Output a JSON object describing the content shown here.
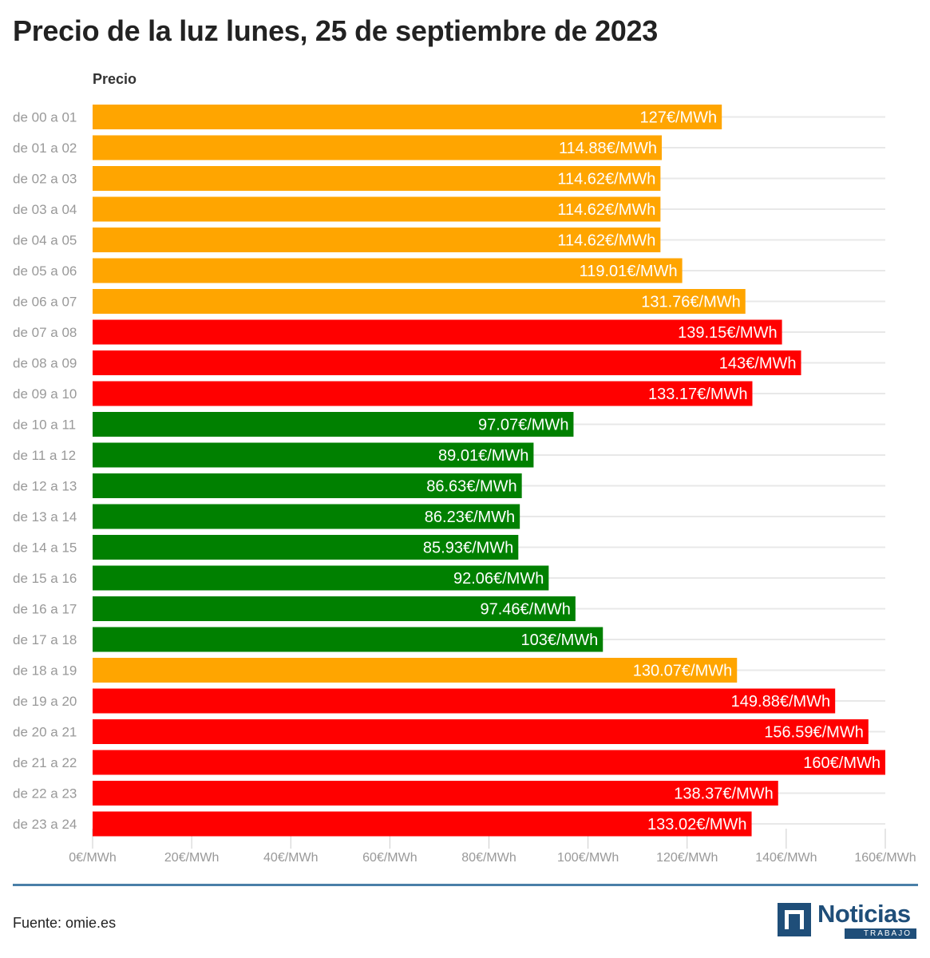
{
  "title": "Precio de la luz lunes, 25 de septiembre de 2023",
  "source": "Fuente: omie.es",
  "logo": {
    "name": "Noticias",
    "sub": "TRABAJO"
  },
  "colors": {
    "medium": "#ffa500",
    "high": "#ff0000",
    "low": "#008000",
    "grid": "#e8e8e8",
    "text": "#999999"
  },
  "chart_data": {
    "type": "bar",
    "orientation": "horizontal",
    "title": "Precio de la luz lunes, 25 de septiembre de 2023",
    "series_name": "Precio",
    "unit": "€/MWh",
    "xlim": [
      0,
      160
    ],
    "x_ticks": [
      0,
      20,
      40,
      60,
      80,
      100,
      120,
      140,
      160
    ],
    "x_tick_labels": [
      "0€/MWh",
      "20€/MWh",
      "40€/MWh",
      "60€/MWh",
      "80€/MWh",
      "100€/MWh",
      "120€/MWh",
      "140€/MWh",
      "160€/MWh"
    ],
    "categories": [
      "de 00 a 01",
      "de 01 a 02",
      "de 02 a 03",
      "de 03 a 04",
      "de 04 a 05",
      "de 05 a 06",
      "de 06 a 07",
      "de 07 a 08",
      "de 08 a 09",
      "de 09 a 10",
      "de 10 a 11",
      "de 11 a 12",
      "de 12 a 13",
      "de 13 a 14",
      "de 14 a 15",
      "de 15 a 16",
      "de 16 a 17",
      "de 17 a 18",
      "de 18 a 19",
      "de 19 a 20",
      "de 20 a 21",
      "de 21 a 22",
      "de 22 a 23",
      "de 23 a 24"
    ],
    "values": [
      127,
      114.88,
      114.62,
      114.62,
      114.62,
      119.01,
      131.76,
      139.15,
      143,
      133.17,
      97.07,
      89.01,
      86.63,
      86.23,
      85.93,
      92.06,
      97.46,
      103,
      130.07,
      149.88,
      156.59,
      160,
      138.37,
      133.02
    ],
    "value_labels": [
      "127€/MWh",
      "114.88€/MWh",
      "114.62€/MWh",
      "114.62€/MWh",
      "114.62€/MWh",
      "119.01€/MWh",
      "131.76€/MWh",
      "139.15€/MWh",
      "143€/MWh",
      "133.17€/MWh",
      "97.07€/MWh",
      "89.01€/MWh",
      "86.63€/MWh",
      "86.23€/MWh",
      "85.93€/MWh",
      "92.06€/MWh",
      "97.46€/MWh",
      "103€/MWh",
      "130.07€/MWh",
      "149.88€/MWh",
      "156.59€/MWh",
      "160€/MWh",
      "138.37€/MWh",
      "133.02€/MWh"
    ],
    "levels": [
      "medium",
      "medium",
      "medium",
      "medium",
      "medium",
      "medium",
      "medium",
      "high",
      "high",
      "high",
      "low",
      "low",
      "low",
      "low",
      "low",
      "low",
      "low",
      "low",
      "medium",
      "high",
      "high",
      "high",
      "high",
      "high"
    ]
  }
}
